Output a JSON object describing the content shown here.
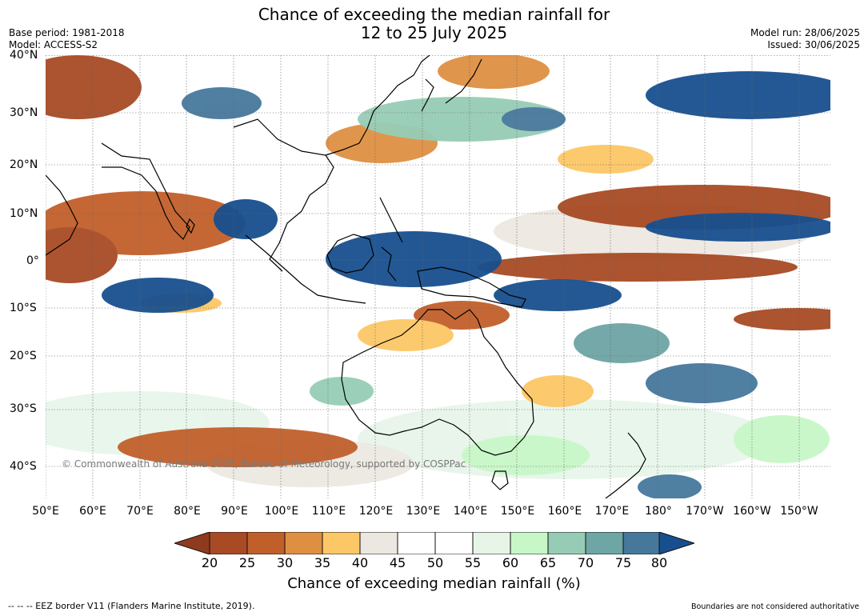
{
  "header": {
    "title_line1": "Chance of exceeding the median rainfall for",
    "title_line2": "12 to 25 July 2025",
    "base_period": "Base period: 1981-2018",
    "model": "Model: ACCESS-S2",
    "model_run": "Model run: 28/06/2025",
    "issued": "Issued: 30/06/2025"
  },
  "map": {
    "lat_labels": [
      "40°N",
      "30°N",
      "20°N",
      "10°N",
      "0°",
      "10°S",
      "20°S",
      "30°S",
      "40°S"
    ],
    "lon_labels": [
      "50°E",
      "60°E",
      "70°E",
      "80°E",
      "90°E",
      "100°E",
      "110°E",
      "120°E",
      "130°E",
      "140°E",
      "150°E",
      "160°E",
      "170°E",
      "180°",
      "170°W",
      "160°W",
      "150°W"
    ],
    "copyright": "© Commonwealth of Australia 2025, Bureau of Meteorology, supported by COSPPac"
  },
  "legend": {
    "ticks": [
      "20",
      "25",
      "30",
      "35",
      "40",
      "45",
      "50",
      "55",
      "60",
      "65",
      "70",
      "75",
      "80"
    ],
    "title": "Chance of exceeding median rainfall (%)",
    "colors": {
      "below_20": "#8f3a1f",
      "20_25": "#a84a24",
      "25_30": "#c15f2b",
      "30_35": "#de8f42",
      "35_40": "#fcc766",
      "40_45": "#ece7e0",
      "45_50": "#ffffff",
      "50_55": "#ffffff",
      "55_60": "#e7f5e9",
      "60_65": "#c7f7c7",
      "65_70": "#96ccb5",
      "70_75": "#6ea5a5",
      "75_80": "#46789c",
      "above_80": "#174f8e"
    }
  },
  "footer": {
    "left": "-- -- -- EEZ border V11 (Flanders Marine Institute, 2019).",
    "right": "Boundaries are not considered authoritative"
  }
}
